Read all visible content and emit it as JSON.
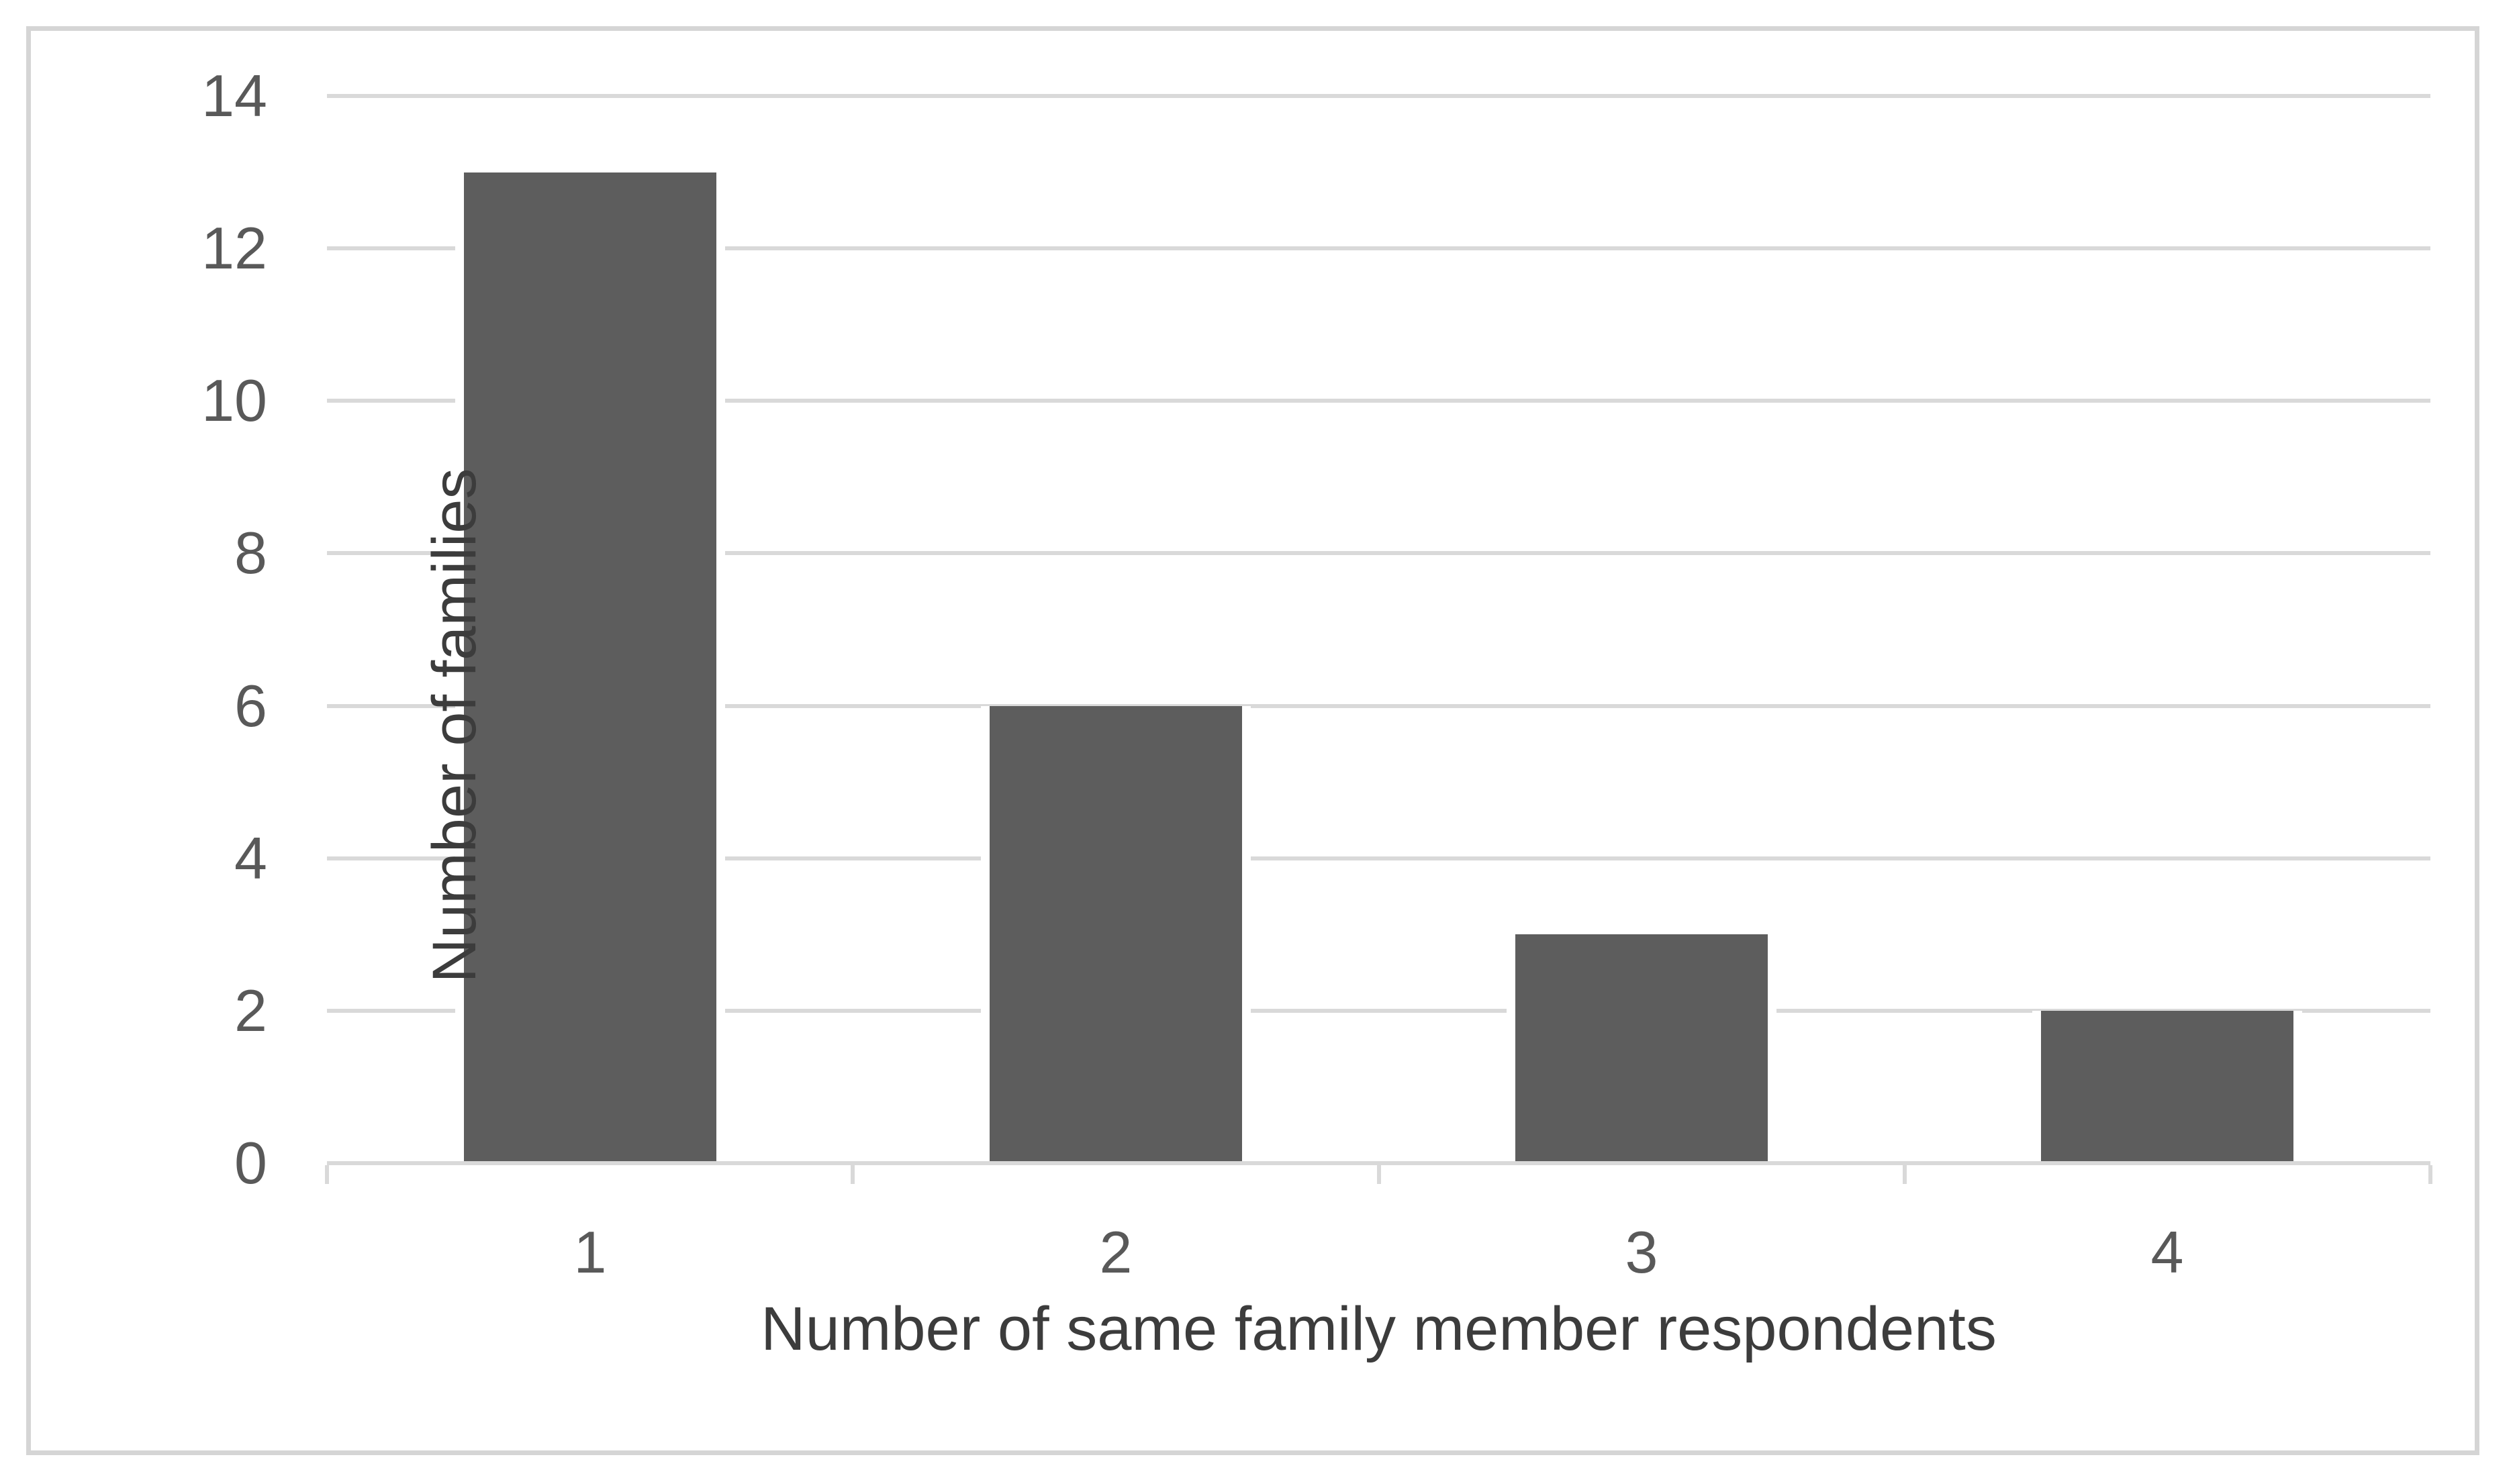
{
  "figure": {
    "kind": "static-excel-style-bar-chart"
  },
  "chart_data": {
    "type": "bar",
    "title": "",
    "categories": [
      "1",
      "2",
      "3",
      "4"
    ],
    "values": [
      13,
      6,
      3,
      2
    ],
    "xlabel": "Number of same family member respondents",
    "ylabel": "Number of families",
    "ylim": [
      0,
      14
    ],
    "ytick_step": 2,
    "ytick_labels": [
      "0",
      "2",
      "4",
      "6",
      "8",
      "10",
      "12",
      "14"
    ],
    "grid": "horizontal-only",
    "legend": "none",
    "colors": {
      "bar": "#5d5d5d",
      "gridline": "#d9d9d9",
      "axis_line": "#d9d9d9",
      "tick_label": "#595959",
      "axis_title": "#3c3c3c",
      "frame_border": "#d5d5d5",
      "background": "#ffffff"
    }
  }
}
